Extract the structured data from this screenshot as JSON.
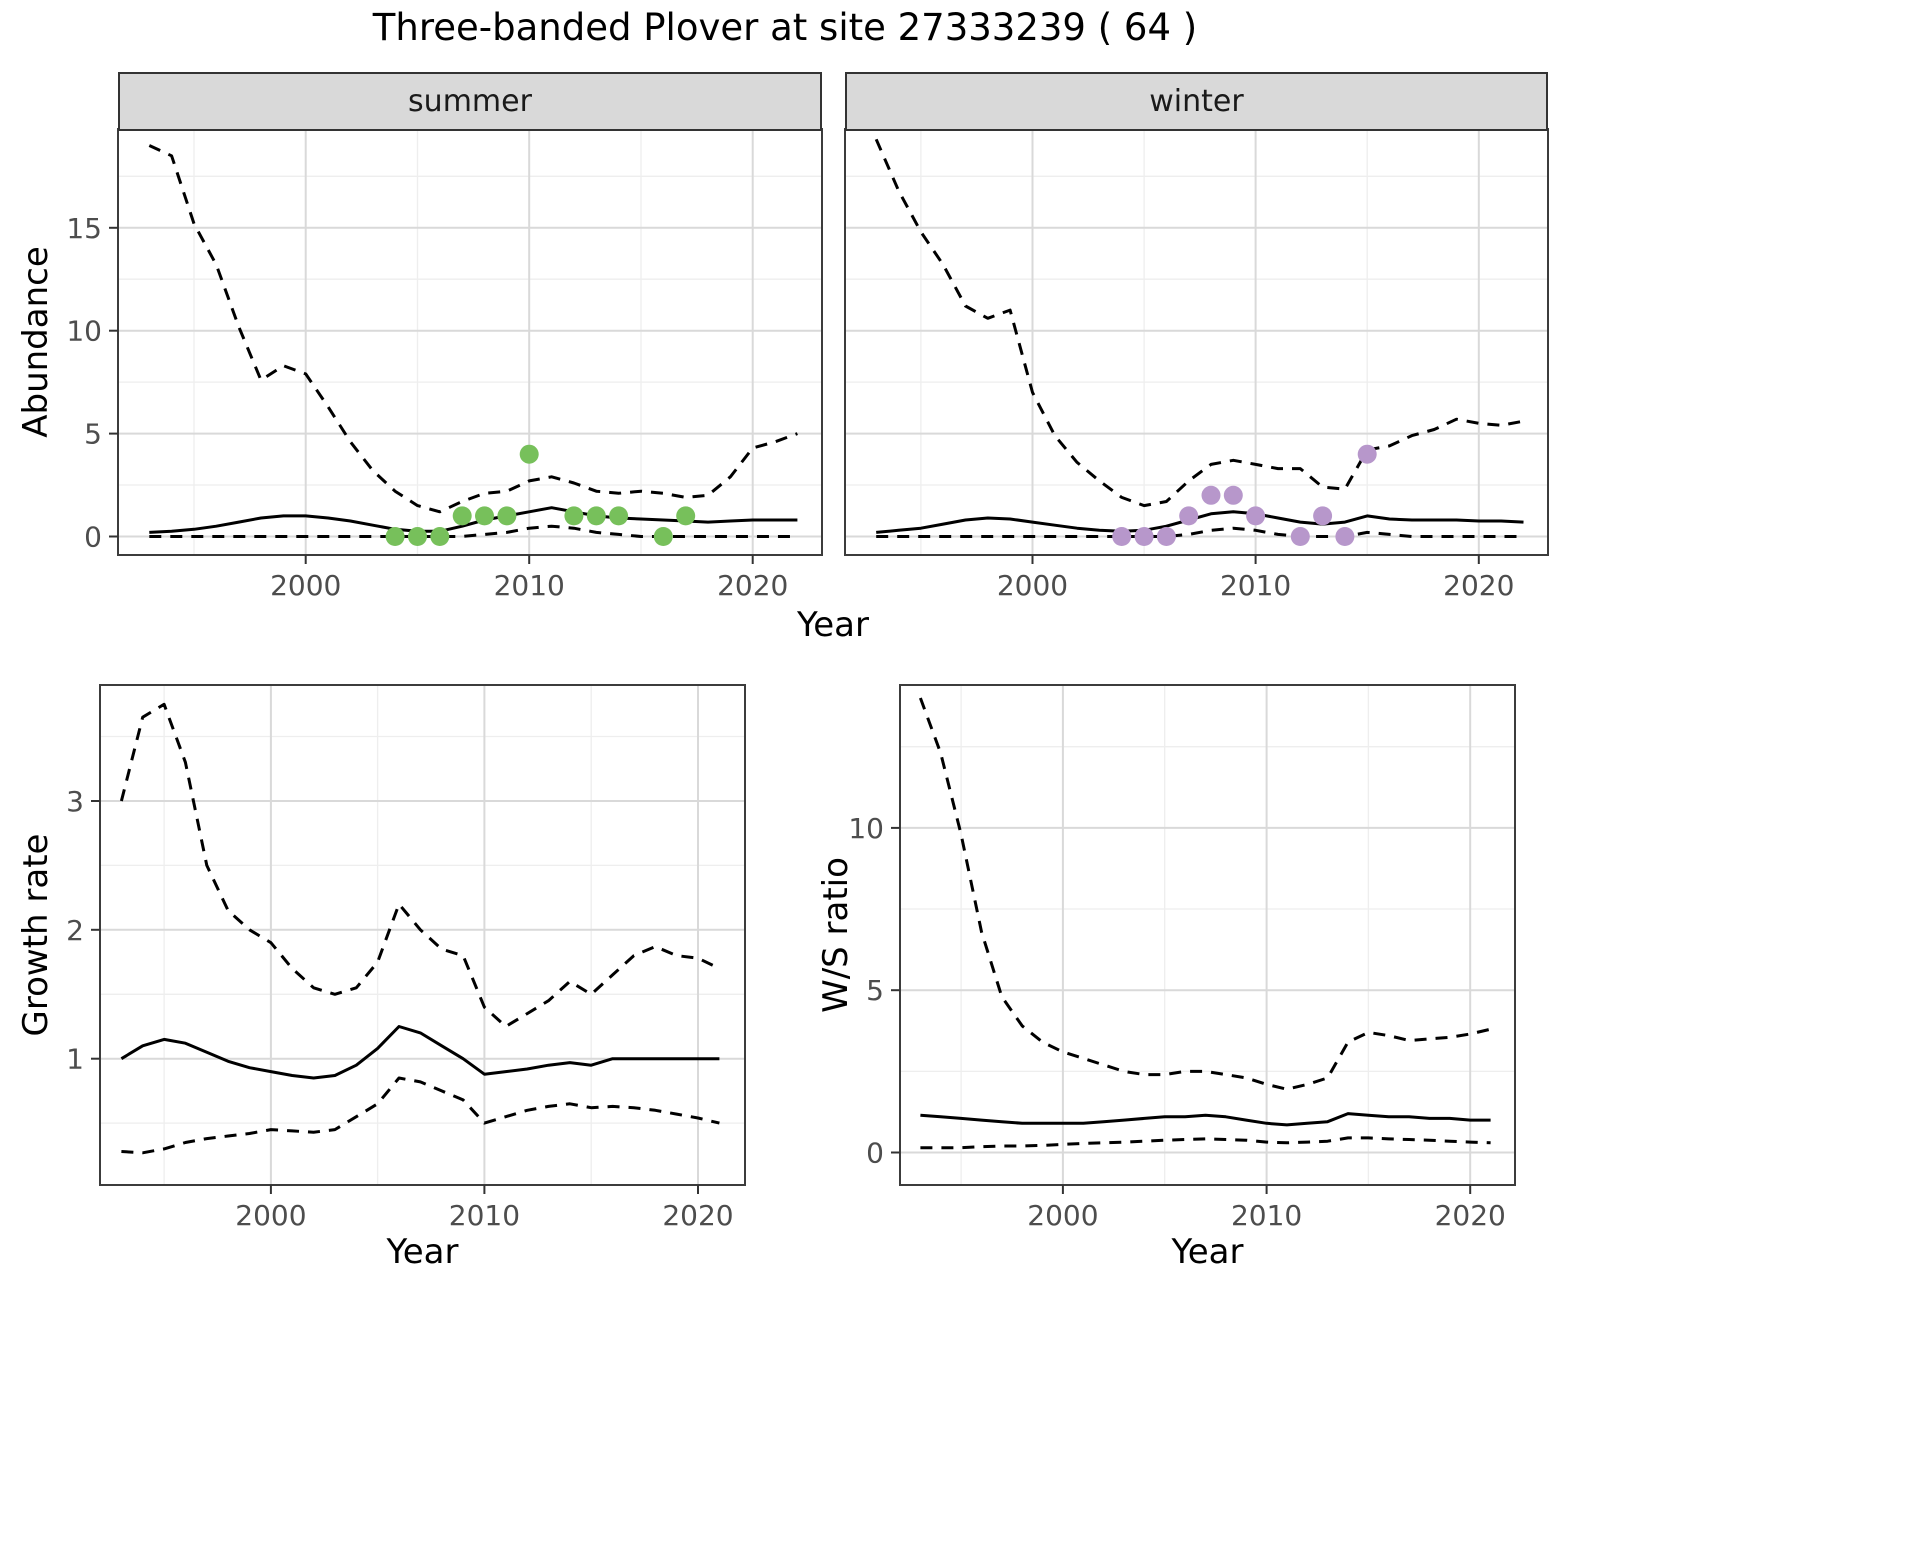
{
  "title": "Three-banded Plover at site 27333239 ( 64 )",
  "colors": {
    "line": "#000000",
    "grid_major": "#d9d9d9",
    "grid_minor": "#eeeeee",
    "panel_border": "#3c3c3c",
    "strip_background": "#d9d9d9",
    "tick_text": "#4d4d4d",
    "tick_mark": "#333333",
    "summer_points": "#77c05b",
    "winter_points": "#b797cb"
  },
  "chart_data": [
    {
      "name": "abundance-summer",
      "type": "line",
      "title": "summer",
      "xlabel": "Year",
      "ylabel": "Abundance",
      "x": [
        1993,
        1994,
        1995,
        1996,
        1997,
        1998,
        1999,
        2000,
        2001,
        2002,
        2003,
        2004,
        2005,
        2006,
        2007,
        2008,
        2009,
        2010,
        2011,
        2012,
        2013,
        2014,
        2015,
        2016,
        2017,
        2018,
        2019,
        2020,
        2021,
        2022
      ],
      "series": [
        {
          "name": "upper-ci",
          "style": "dashed",
          "values": [
            19.0,
            18.5,
            15.2,
            13.2,
            10.2,
            7.6,
            8.3,
            7.9,
            6.3,
            4.6,
            3.2,
            2.2,
            1.5,
            1.2,
            1.7,
            2.1,
            2.2,
            2.7,
            2.9,
            2.6,
            2.2,
            2.1,
            2.2,
            2.1,
            1.9,
            2.0,
            2.9,
            4.3,
            4.6,
            5.0
          ]
        },
        {
          "name": "mean",
          "style": "solid",
          "values": [
            0.2,
            0.25,
            0.35,
            0.5,
            0.7,
            0.9,
            1.0,
            1.0,
            0.9,
            0.75,
            0.55,
            0.35,
            0.25,
            0.25,
            0.5,
            0.8,
            1.0,
            1.2,
            1.4,
            1.2,
            1.0,
            0.9,
            0.85,
            0.8,
            0.75,
            0.7,
            0.75,
            0.8,
            0.8,
            0.8
          ]
        },
        {
          "name": "lower-ci",
          "style": "dashed",
          "values": [
            0,
            0,
            0,
            0,
            0,
            0,
            0,
            0,
            0,
            0,
            0,
            0,
            0,
            0,
            0,
            0.1,
            0.2,
            0.4,
            0.5,
            0.4,
            0.2,
            0.1,
            0,
            0,
            0,
            0,
            0,
            0,
            0,
            0
          ]
        }
      ],
      "points": {
        "name": "observed-counts",
        "color": "#77c05b",
        "x": [
          2004,
          2005,
          2006,
          2007,
          2008,
          2009,
          2010,
          2012,
          2013,
          2014,
          2016,
          2017
        ],
        "y": [
          0,
          0,
          0,
          1,
          1,
          1,
          4,
          1,
          1,
          1,
          0,
          1
        ]
      },
      "xlim": [
        1991.6,
        2023.1
      ],
      "ylim": [
        -0.9,
        19.8
      ],
      "xticks": [
        2000,
        2010,
        2020
      ],
      "yticks": [
        0,
        5,
        10,
        15
      ],
      "xticks_minor": [
        1995,
        2005,
        2015
      ],
      "yticks_minor": [
        2.5,
        7.5,
        12.5,
        17.5
      ],
      "grid": true,
      "legend": "none"
    },
    {
      "name": "abundance-winter",
      "type": "line",
      "title": "winter",
      "xlabel": "",
      "ylabel": "",
      "x": [
        1993,
        1994,
        1995,
        1996,
        1997,
        1998,
        1999,
        2000,
        2001,
        2002,
        2003,
        2004,
        2005,
        2006,
        2007,
        2008,
        2009,
        2010,
        2011,
        2012,
        2013,
        2014,
        2015,
        2016,
        2017,
        2018,
        2019,
        2020,
        2021,
        2022
      ],
      "series": [
        {
          "name": "upper-ci",
          "style": "dashed",
          "values": [
            19.3,
            16.8,
            14.8,
            13.2,
            11.2,
            10.6,
            11.0,
            7.0,
            4.9,
            3.6,
            2.7,
            1.9,
            1.5,
            1.7,
            2.7,
            3.5,
            3.7,
            3.5,
            3.3,
            3.3,
            2.4,
            2.3,
            4.2,
            4.4,
            4.9,
            5.2,
            5.7,
            5.5,
            5.4,
            5.6
          ]
        },
        {
          "name": "mean",
          "style": "solid",
          "values": [
            0.2,
            0.3,
            0.4,
            0.6,
            0.8,
            0.9,
            0.85,
            0.7,
            0.55,
            0.4,
            0.3,
            0.25,
            0.3,
            0.5,
            0.8,
            1.1,
            1.2,
            1.1,
            0.9,
            0.7,
            0.6,
            0.7,
            1.0,
            0.85,
            0.8,
            0.8,
            0.8,
            0.75,
            0.75,
            0.7
          ]
        },
        {
          "name": "lower-ci",
          "style": "dashed",
          "values": [
            0,
            0,
            0,
            0,
            0,
            0,
            0,
            0,
            0,
            0,
            0,
            0,
            0,
            0,
            0.1,
            0.3,
            0.4,
            0.3,
            0.1,
            0,
            0,
            0,
            0.2,
            0.1,
            0,
            0,
            0,
            0,
            0,
            0
          ]
        }
      ],
      "points": {
        "name": "observed-counts",
        "color": "#b797cb",
        "x": [
          2004,
          2005,
          2006,
          2007,
          2008,
          2009,
          2010,
          2012,
          2013,
          2014,
          2015
        ],
        "y": [
          0,
          0,
          0,
          1,
          2,
          2,
          1,
          0,
          1,
          0,
          4
        ]
      },
      "xlim": [
        1991.6,
        2023.1
      ],
      "ylim": [
        -0.9,
        19.8
      ],
      "xticks": [
        2000,
        2010,
        2020
      ],
      "yticks": [
        0,
        5,
        10,
        15
      ],
      "xticks_minor": [
        1995,
        2005,
        2015
      ],
      "yticks_minor": [
        2.5,
        7.5,
        12.5,
        17.5
      ],
      "grid": true,
      "legend": "none"
    },
    {
      "name": "growth-rate",
      "type": "line",
      "title": "",
      "xlabel": "Year",
      "ylabel": "Growth rate",
      "x": [
        1993,
        1994,
        1995,
        1996,
        1997,
        1998,
        1999,
        2000,
        2001,
        2002,
        2003,
        2004,
        2005,
        2006,
        2007,
        2008,
        2009,
        2010,
        2011,
        2012,
        2013,
        2014,
        2015,
        2016,
        2017,
        2018,
        2019,
        2020,
        2021
      ],
      "series": [
        {
          "name": "upper-ci",
          "style": "dashed",
          "values": [
            3.0,
            3.65,
            3.75,
            3.3,
            2.5,
            2.15,
            2.0,
            1.9,
            1.7,
            1.55,
            1.5,
            1.55,
            1.75,
            2.2,
            2.0,
            1.85,
            1.8,
            1.4,
            1.25,
            1.35,
            1.45,
            1.6,
            1.5,
            1.65,
            1.8,
            1.87,
            1.8,
            1.78,
            1.7
          ]
        },
        {
          "name": "mean",
          "style": "solid",
          "values": [
            1.0,
            1.1,
            1.15,
            1.12,
            1.05,
            0.98,
            0.93,
            0.9,
            0.87,
            0.85,
            0.87,
            0.95,
            1.08,
            1.25,
            1.2,
            1.1,
            1.0,
            0.88,
            0.9,
            0.92,
            0.95,
            0.97,
            0.95,
            1.0,
            1.0,
            1.0,
            1.0,
            1.0,
            1.0
          ]
        },
        {
          "name": "lower-ci",
          "style": "dashed",
          "values": [
            0.28,
            0.27,
            0.3,
            0.35,
            0.38,
            0.4,
            0.42,
            0.45,
            0.44,
            0.43,
            0.45,
            0.55,
            0.65,
            0.85,
            0.82,
            0.75,
            0.68,
            0.5,
            0.55,
            0.6,
            0.63,
            0.65,
            0.62,
            0.63,
            0.62,
            0.6,
            0.57,
            0.54,
            0.5
          ]
        }
      ],
      "xlim": [
        1992.0,
        2022.2
      ],
      "ylim": [
        0.02,
        3.9
      ],
      "xticks": [
        2000,
        2010,
        2020
      ],
      "yticks": [
        1,
        2,
        3
      ],
      "xticks_minor": [
        1995,
        2005,
        2015
      ],
      "yticks_minor": [
        0.5,
        1.5,
        2.5,
        3.5
      ],
      "grid": true,
      "legend": "none"
    },
    {
      "name": "ws-ratio",
      "type": "line",
      "title": "",
      "xlabel": "Year",
      "ylabel": "W/S ratio",
      "x": [
        1993,
        1994,
        1995,
        1996,
        1997,
        1998,
        1999,
        2000,
        2001,
        2002,
        2003,
        2004,
        2005,
        2006,
        2007,
        2008,
        2009,
        2010,
        2011,
        2012,
        2013,
        2014,
        2015,
        2016,
        2017,
        2018,
        2019,
        2020,
        2021
      ],
      "series": [
        {
          "name": "upper-ci",
          "style": "dashed",
          "values": [
            14.0,
            12.3,
            9.8,
            6.8,
            4.8,
            3.9,
            3.4,
            3.1,
            2.9,
            2.7,
            2.5,
            2.4,
            2.4,
            2.5,
            2.5,
            2.4,
            2.3,
            2.1,
            1.95,
            2.1,
            2.3,
            3.4,
            3.7,
            3.6,
            3.45,
            3.5,
            3.55,
            3.65,
            3.8
          ]
        },
        {
          "name": "mean",
          "style": "solid",
          "values": [
            1.15,
            1.1,
            1.05,
            1.0,
            0.95,
            0.9,
            0.9,
            0.9,
            0.9,
            0.95,
            1.0,
            1.05,
            1.1,
            1.1,
            1.15,
            1.1,
            1.0,
            0.9,
            0.85,
            0.9,
            0.95,
            1.2,
            1.15,
            1.1,
            1.1,
            1.05,
            1.05,
            1.0,
            1.0
          ]
        },
        {
          "name": "lower-ci",
          "style": "dashed",
          "values": [
            0.15,
            0.15,
            0.15,
            0.18,
            0.2,
            0.2,
            0.22,
            0.25,
            0.28,
            0.3,
            0.32,
            0.35,
            0.38,
            0.4,
            0.42,
            0.4,
            0.38,
            0.32,
            0.3,
            0.32,
            0.35,
            0.45,
            0.45,
            0.42,
            0.4,
            0.38,
            0.35,
            0.32,
            0.3
          ]
        }
      ],
      "xlim": [
        1992.0,
        2022.2
      ],
      "ylim": [
        -1.0,
        14.4
      ],
      "xticks": [
        2000,
        2010,
        2020
      ],
      "yticks": [
        0,
        5,
        10
      ],
      "xticks_minor": [
        1995,
        2005,
        2015
      ],
      "yticks_minor": [
        2.5,
        7.5,
        12.5
      ],
      "grid": true,
      "legend": "none"
    }
  ]
}
